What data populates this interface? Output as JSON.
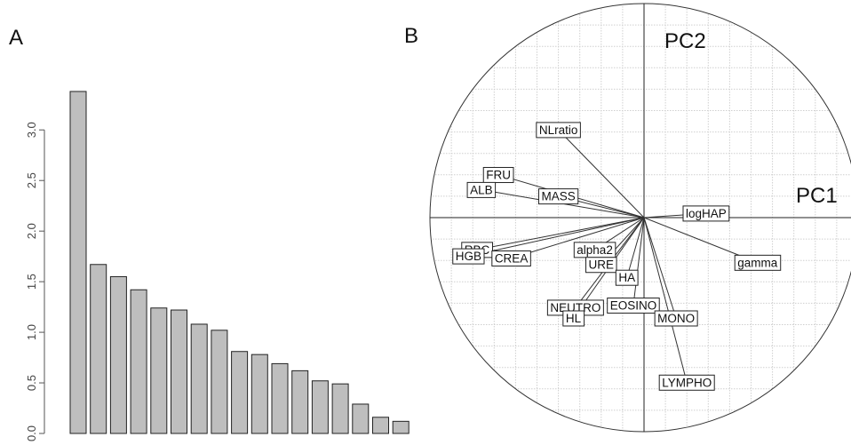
{
  "panels": {
    "a_label": "A",
    "b_label": "B"
  },
  "chart_data": [
    {
      "type": "bar",
      "panel": "A",
      "values": [
        3.38,
        1.67,
        1.55,
        1.42,
        1.24,
        1.22,
        1.08,
        1.02,
        0.81,
        0.78,
        0.69,
        0.62,
        0.52,
        0.49,
        0.29,
        0.16,
        0.12
      ],
      "yticks": [
        "0.0",
        "0.5",
        "1.0",
        "1.5",
        "2.0",
        "2.5",
        "3.0"
      ],
      "ylim": [
        0,
        3.45
      ],
      "bar_color": "#bebebe",
      "grid": false
    },
    {
      "type": "scatter",
      "panel": "B",
      "xlabel": "PC1",
      "ylabel": "PC2",
      "xlim": [
        -1,
        1
      ],
      "ylim": [
        -1,
        1
      ],
      "grid": true,
      "circle": true,
      "arrows": [
        {
          "label": "NLratio",
          "x": -0.4,
          "y": 0.41
        },
        {
          "label": "FRU",
          "x": -0.68,
          "y": 0.2
        },
        {
          "label": "ALB",
          "x": -0.76,
          "y": 0.13
        },
        {
          "label": "MASS",
          "x": -0.4,
          "y": 0.1
        },
        {
          "label": "logHAP",
          "x": 0.29,
          "y": 0.02
        },
        {
          "label": "gamma",
          "x": 0.53,
          "y": -0.21
        },
        {
          "label": "RBC",
          "x": -0.78,
          "y": -0.15
        },
        {
          "label": "alpha2",
          "x": -0.23,
          "y": -0.15
        },
        {
          "label": "HGB",
          "x": -0.82,
          "y": -0.18
        },
        {
          "label": "CREA",
          "x": -0.62,
          "y": -0.19
        },
        {
          "label": "URE",
          "x": -0.2,
          "y": -0.22
        },
        {
          "label": "HA",
          "x": -0.08,
          "y": -0.28
        },
        {
          "label": "NEUTRO",
          "x": -0.32,
          "y": -0.42
        },
        {
          "label": "EOSINO",
          "x": -0.05,
          "y": -0.41
        },
        {
          "label": "HL",
          "x": -0.33,
          "y": -0.47
        },
        {
          "label": "MONO",
          "x": 0.15,
          "y": -0.47
        },
        {
          "label": "LYMPHO",
          "x": 0.2,
          "y": -0.77
        }
      ]
    }
  ]
}
